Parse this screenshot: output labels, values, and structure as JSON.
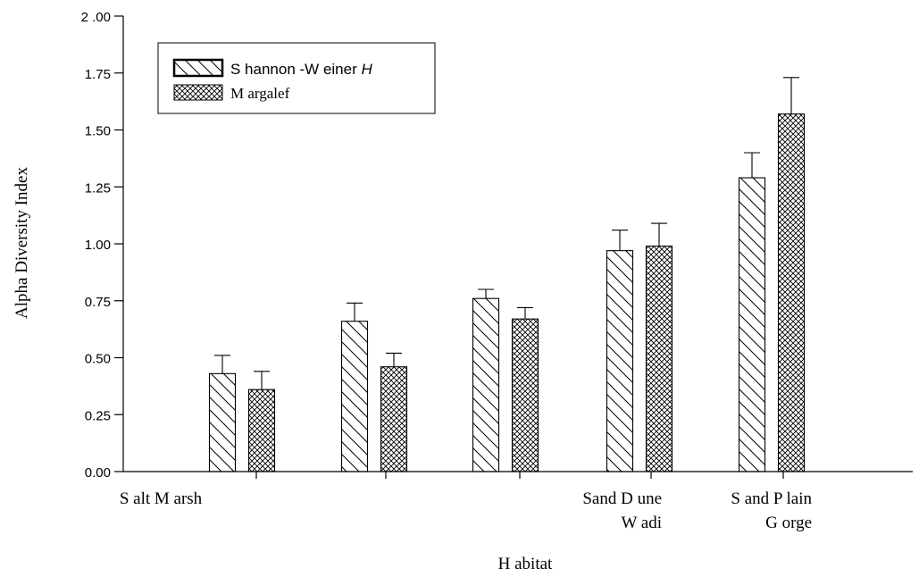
{
  "chart_data": {
    "type": "bar",
    "ylabel": "Alpha Diversity Index",
    "xlabel": "H abitat",
    "ylim": [
      0,
      2
    ],
    "y_ticks": [
      "0.00",
      "0.25",
      "0.50",
      "0.75",
      "1.00",
      "1.25",
      "1.50",
      "1.75",
      "2 .00"
    ],
    "category_labels": [
      "S alt M arsh",
      "",
      "",
      "Sand D une\nW adi",
      "S and P lain\nG orge"
    ],
    "series": [
      {
        "name": "S hannon -W einer H",
        "values": [
          0.43,
          0.66,
          0.76,
          0.97,
          1.29
        ],
        "errors": [
          0.08,
          0.08,
          0.04,
          0.09,
          0.11
        ],
        "pattern": "diagonal-hatch"
      },
      {
        "name": "M argalef",
        "values": [
          0.36,
          0.46,
          0.67,
          0.99,
          1.57
        ],
        "errors": [
          0.08,
          0.06,
          0.05,
          0.1,
          0.16
        ],
        "pattern": "crosshatch"
      }
    ],
    "legend_position": "top-left",
    "grid": false
  }
}
